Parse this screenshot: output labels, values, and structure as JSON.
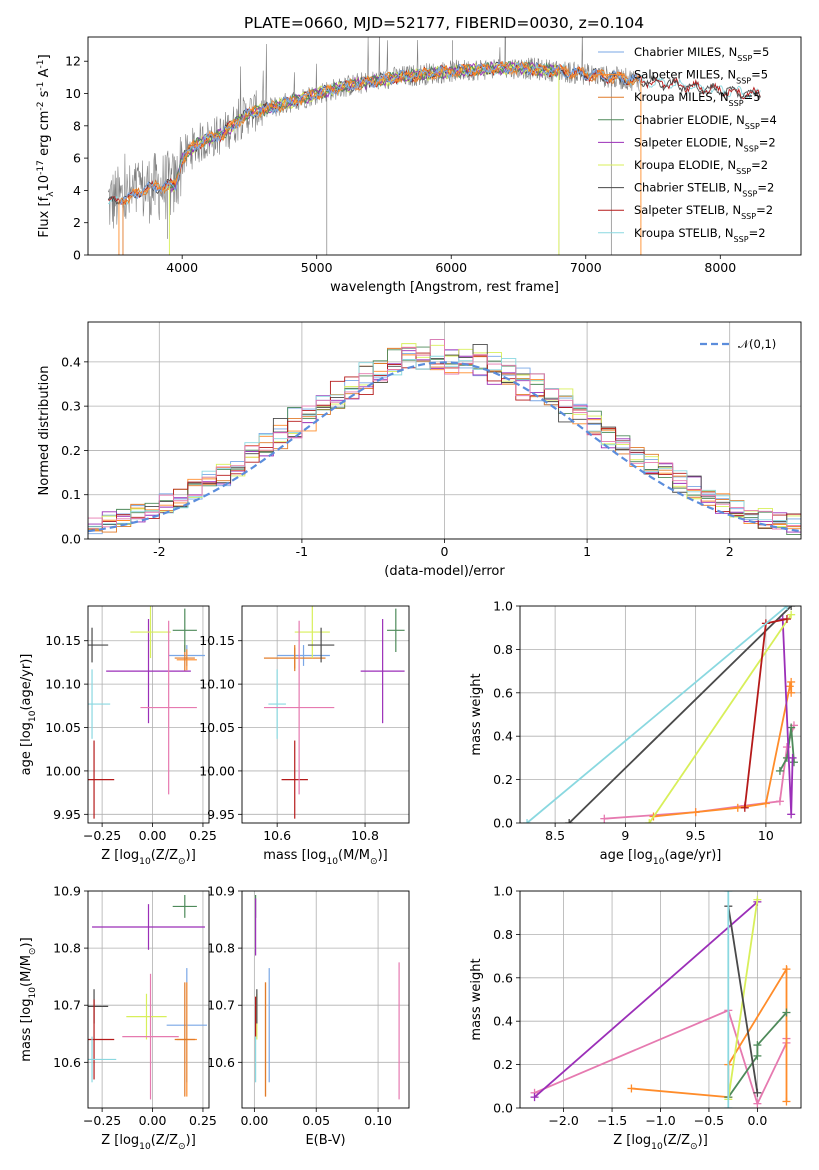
{
  "page_title": "PLATE=0660, MJD=52177, FIBERID=0030, z=0.104",
  "colors": {
    "Chabrier MILES": "#7aa7e6",
    "Salpeter MILES": "#ff8c2a",
    "Kroupa MILES": "#e07b2a",
    "Chabrier ELODIE": "#4e8a5a",
    "Salpeter ELODIE": "#9b2fb8",
    "Kroupa ELODIE": "#d8ef5a",
    "Chabrier STELIB": "#4a4a4a",
    "Salpeter STELIB": "#b51a1a",
    "Kroupa STELIB": "#8ad8e0",
    "pink": "#e67ab0",
    "data": "#808080",
    "gaussian": "#5b8ddc"
  },
  "legend_entries": [
    "Chabrier MILES, N$_{SSP}$=5",
    "Salpeter MILES, N$_{SSP}$=5",
    "Kroupa MILES, N$_{SSP}$=5",
    "Chabrier ELODIE, N$_{SSP}$=4",
    "Salpeter ELODIE, N$_{SSP}$=2",
    "Kroupa ELODIE, N$_{SSP}$=2",
    "Chabrier STELIB, N$_{SSP}$=2",
    "Salpeter STELIB, N$_{SSP}$=2",
    "Kroupa STELIB, N$_{SSP}$=2"
  ],
  "chart_data": [
    {
      "type": "line",
      "panel": "spectrum",
      "title": "PLATE=0660, MJD=52177, FIBERID=0030, z=0.104",
      "xlabel": "wavelength [Angstrom, rest frame]",
      "ylabel": "Flux [f$_\\lambda$10$^{-17}$ erg cm$^{-2}$ s$^{-1}$ A$^{-1}$]",
      "xlim": [
        3300,
        8600
      ],
      "ylim": [
        0,
        13.5
      ],
      "xticks": [
        4000,
        5000,
        6000,
        7000,
        8000
      ],
      "yticks": [
        0,
        2,
        4,
        6,
        8,
        10,
        12
      ],
      "continuum": {
        "x": [
          3450,
          3600,
          3700,
          3800,
          3900,
          3950,
          4000,
          4100,
          4200,
          4300,
          4400,
          4500,
          4700,
          5000,
          5300,
          5600,
          5900,
          6200,
          6500,
          6800,
          7000,
          7200,
          7400,
          7600,
          7800,
          8000,
          8200
        ],
        "y": [
          3.3,
          3.5,
          4.0,
          4.2,
          4.3,
          4.3,
          6.0,
          6.8,
          7.2,
          7.5,
          8.2,
          8.8,
          9.2,
          10.0,
          10.6,
          11.0,
          11.3,
          11.5,
          11.6,
          11.4,
          11.2,
          11.0,
          10.8,
          10.6,
          10.4,
          10.2,
          10.0
        ]
      },
      "series_names": [
        "Chabrier MILES",
        "Salpeter MILES",
        "Kroupa MILES",
        "Chabrier ELODIE",
        "Salpeter ELODIE",
        "Kroupa ELODIE",
        "Chabrier STELIB",
        "Salpeter STELIB",
        "Kroupa STELIB"
      ]
    },
    {
      "type": "histogram",
      "panel": "residuals",
      "xlabel": "(data-model)/error",
      "ylabel": "Normed distribution",
      "xlim": [
        -2.5,
        2.5
      ],
      "ylim": [
        0,
        0.49
      ],
      "xticks": [
        -2,
        -1,
        0,
        1,
        2
      ],
      "yticks": [
        0.0,
        0.1,
        0.2,
        0.3,
        0.4
      ],
      "gaussian_label": "$\\mathcal{N}(0,1)$",
      "bin_width": 0.1
    },
    {
      "type": "scatter",
      "panel": "age-vs-Z",
      "xlabel": "Z [log$_{10}$(Z/Z$_\\odot$)]",
      "ylabel": "age  [log$_{10}$(age/yr)]",
      "xlim": [
        -0.32,
        0.28
      ],
      "ylim": [
        9.94,
        10.19
      ],
      "xticks": [
        -0.25,
        0.0,
        0.25
      ],
      "xtick_labels": [
        "−0.25",
        "0.00",
        "0.25"
      ],
      "yticks": [
        9.95,
        10.0,
        10.05,
        10.1,
        10.15
      ],
      "points": [
        {
          "name": "Chabrier MILES",
          "x": 0.17,
          "y": 10.133,
          "xerr": 0.09,
          "yerr": 0.012
        },
        {
          "name": "Salpeter MILES",
          "x": 0.17,
          "y": 10.128,
          "xerr": 0.05,
          "yerr": 0.012
        },
        {
          "name": "Kroupa MILES",
          "x": 0.16,
          "y": 10.13,
          "xerr": 0.05,
          "yerr": 0.015
        },
        {
          "name": "Chabrier ELODIE",
          "x": 0.16,
          "y": 10.162,
          "xerr": 0.06,
          "yerr": 0.025
        },
        {
          "name": "Salpeter ELODIE",
          "x": -0.02,
          "y": 10.115,
          "xerr": 0.21,
          "yerr": 0.06
        },
        {
          "name": "Kroupa ELODIE",
          "x": -0.01,
          "y": 10.16,
          "xerr": 0.1,
          "yerr": 0.03
        },
        {
          "name": "Chabrier STELIB",
          "x": -0.3,
          "y": 10.145,
          "xerr": 0.08,
          "yerr": 0.02
        },
        {
          "name": "Salpeter STELIB",
          "x": -0.29,
          "y": 9.99,
          "xerr": 0.1,
          "yerr": 0.045
        },
        {
          "name": "Kroupa STELIB",
          "x": -0.3,
          "y": 10.077,
          "xerr": 0.09,
          "yerr": 0.04
        },
        {
          "name": "pink",
          "x": 0.08,
          "y": 10.073,
          "xerr": 0.14,
          "yerr": 0.1
        }
      ]
    },
    {
      "type": "scatter",
      "panel": "age-vs-mass",
      "xlabel": "mass [log$_{10}$(M/M$_\\odot$)]",
      "xlim": [
        10.52,
        10.9
      ],
      "ylim": [
        9.94,
        10.19
      ],
      "xticks": [
        10.6,
        10.8
      ],
      "yticks": [
        9.95,
        10.0,
        10.05,
        10.1,
        10.15
      ],
      "points": [
        {
          "name": "Chabrier MILES",
          "x": 10.66,
          "y": 10.133,
          "xerr": 0.06,
          "yerr": 0.012
        },
        {
          "name": "Salpeter MILES",
          "x": 10.64,
          "y": 10.13,
          "xerr": 0.07,
          "yerr": 0.012
        },
        {
          "name": "Kroupa MILES",
          "x": 10.64,
          "y": 10.13,
          "xerr": 0.07,
          "yerr": 0.015
        },
        {
          "name": "Chabrier ELODIE",
          "x": 10.87,
          "y": 10.162,
          "xerr": 0.02,
          "yerr": 0.025
        },
        {
          "name": "Salpeter ELODIE",
          "x": 10.84,
          "y": 10.115,
          "xerr": 0.05,
          "yerr": 0.06
        },
        {
          "name": "Kroupa ELODIE",
          "x": 10.68,
          "y": 10.16,
          "xerr": 0.04,
          "yerr": 0.03
        },
        {
          "name": "Chabrier STELIB",
          "x": 10.7,
          "y": 10.145,
          "xerr": 0.03,
          "yerr": 0.02
        },
        {
          "name": "Salpeter STELIB",
          "x": 10.64,
          "y": 9.99,
          "xerr": 0.03,
          "yerr": 0.045
        },
        {
          "name": "Kroupa STELIB",
          "x": 10.6,
          "y": 10.077,
          "xerr": 0.02,
          "yerr": 0.04
        },
        {
          "name": "pink",
          "x": 10.65,
          "y": 10.073,
          "xerr": 0.08,
          "yerr": 0.1
        }
      ]
    },
    {
      "type": "line",
      "panel": "weight-vs-age",
      "xlabel": "age  [log$_{10}$(age/yr)]",
      "ylabel": "mass weight",
      "xlim": [
        8.25,
        10.25
      ],
      "ylim": [
        0,
        1.0
      ],
      "xticks": [
        8.5,
        9.0,
        9.5,
        10.0
      ],
      "yticks": [
        0.0,
        0.2,
        0.4,
        0.6,
        0.8,
        1.0
      ],
      "series": [
        {
          "name": "pink",
          "x": [
            8.85,
            9.5,
            9.85,
            10.1,
            10.15,
            10.2
          ],
          "y": [
            0.02,
            0.05,
            0.08,
            0.1,
            0.35,
            0.45
          ]
        },
        {
          "name": "Salpeter MILES",
          "x": [
            9.2,
            9.5,
            9.8,
            10.0,
            10.17,
            10.18,
            10.18
          ],
          "y": [
            0.03,
            0.05,
            0.07,
            0.09,
            0.63,
            0.65,
            0.6
          ]
        },
        {
          "name": "Chabrier ELODIE",
          "x": [
            10.1,
            10.15,
            10.18,
            10.2
          ],
          "y": [
            0.24,
            0.3,
            0.44,
            0.28
          ]
        },
        {
          "name": "Salpeter ELODIE",
          "x": [
            10.12,
            10.18,
            10.19
          ],
          "y": [
            0.94,
            0.04,
            0.3
          ]
        },
        {
          "name": "Kroupa ELODIE",
          "x": [
            9.17,
            10.18
          ],
          "y": [
            0.0,
            0.96
          ]
        },
        {
          "name": "Chabrier STELIB",
          "x": [
            8.6,
            10.18
          ],
          "y": [
            0.0,
            1.0
          ]
        },
        {
          "name": "Salpeter STELIB",
          "x": [
            9.85,
            10.0,
            10.15
          ],
          "y": [
            0.07,
            0.92,
            0.94
          ]
        },
        {
          "name": "Kroupa STELIB",
          "x": [
            8.3,
            10.15
          ],
          "y": [
            0.0,
            1.0
          ]
        }
      ]
    },
    {
      "type": "scatter",
      "panel": "mass-vs-Z",
      "xlabel": "Z [log$_{10}$(Z/Z$_\\odot$)]",
      "ylabel": "mass [log$_{10}$(M/M$_\\odot$)]",
      "xlim": [
        -0.32,
        0.28
      ],
      "ylim": [
        10.52,
        10.9
      ],
      "xticks": [
        -0.25,
        0.0,
        0.25
      ],
      "xtick_labels": [
        "−0.25",
        "0.00",
        "0.25"
      ],
      "yticks": [
        10.6,
        10.7,
        10.8,
        10.9
      ],
      "points": [
        {
          "name": "Chabrier MILES",
          "x": 0.17,
          "y": 10.665,
          "xerr": 0.1,
          "yerr": 0.1
        },
        {
          "name": "Salpeter MILES",
          "x": 0.17,
          "y": 10.64,
          "xerr": 0.05,
          "yerr": 0.1
        },
        {
          "name": "Kroupa MILES",
          "x": 0.16,
          "y": 10.64,
          "xerr": 0.05,
          "yerr": 0.1
        },
        {
          "name": "Chabrier ELODIE",
          "x": 0.16,
          "y": 10.873,
          "xerr": 0.06,
          "yerr": 0.02
        },
        {
          "name": "Salpeter ELODIE",
          "x": -0.02,
          "y": 10.837,
          "xerr": 0.28,
          "yerr": 0.04
        },
        {
          "name": "Kroupa ELODIE",
          "x": -0.03,
          "y": 10.68,
          "xerr": 0.1,
          "yerr": 0.04
        },
        {
          "name": "Chabrier STELIB",
          "x": -0.29,
          "y": 10.698,
          "xerr": 0.07,
          "yerr": 0.03
        },
        {
          "name": "Salpeter STELIB",
          "x": -0.29,
          "y": 10.64,
          "xerr": 0.1,
          "yerr": 0.07
        },
        {
          "name": "Kroupa STELIB",
          "x": -0.3,
          "y": 10.605,
          "xerr": 0.12,
          "yerr": 0.04
        },
        {
          "name": "pink",
          "x": -0.01,
          "y": 10.645,
          "xerr": 0.14,
          "yerr": 0.11
        }
      ]
    },
    {
      "type": "scatter",
      "panel": "mass-vs-EBV",
      "xlabel": "E(B-V)",
      "xlim": [
        -0.01,
        0.125
      ],
      "ylim": [
        10.52,
        10.9
      ],
      "xticks": [
        0.0,
        0.05,
        0.1
      ],
      "xtick_labels": [
        "0.00",
        "0.05",
        "0.10"
      ],
      "yticks": [
        10.6,
        10.7,
        10.8,
        10.9
      ],
      "points": [
        {
          "name": "Chabrier MILES",
          "x": 0.012,
          "y": 10.665,
          "xerr": 0,
          "yerr": 0.1
        },
        {
          "name": "Salpeter MILES",
          "x": 0.009,
          "y": 10.64,
          "xerr": 0,
          "yerr": 0.1
        },
        {
          "name": "Kroupa MILES",
          "x": 0.009,
          "y": 10.64,
          "xerr": 0,
          "yerr": 0.1
        },
        {
          "name": "Chabrier ELODIE",
          "x": 0.001,
          "y": 10.873,
          "xerr": 0,
          "yerr": 0.02
        },
        {
          "name": "Salpeter ELODIE",
          "x": 0.001,
          "y": 10.837,
          "xerr": 0,
          "yerr": 0.05
        },
        {
          "name": "Kroupa ELODIE",
          "x": 0.002,
          "y": 10.68,
          "xerr": 0,
          "yerr": 0.04
        },
        {
          "name": "Chabrier STELIB",
          "x": 0.002,
          "y": 10.698,
          "xerr": 0,
          "yerr": 0.03
        },
        {
          "name": "Salpeter STELIB",
          "x": 0.001,
          "y": 10.68,
          "xerr": 0,
          "yerr": 0.035
        },
        {
          "name": "Kroupa STELIB",
          "x": 0.001,
          "y": 10.605,
          "xerr": 0,
          "yerr": 0.04
        },
        {
          "name": "pink",
          "x": 0.117,
          "y": 10.655,
          "xerr": 0,
          "yerr": 0.12
        }
      ]
    },
    {
      "type": "line",
      "panel": "weight-vs-Z",
      "xlabel": "Z [log$_{10}$(Z/Z$_\\odot$)]",
      "ylabel": "mass weight",
      "xlim": [
        -2.45,
        0.45
      ],
      "ylim": [
        0,
        1.0
      ],
      "xticks": [
        -2.0,
        -1.5,
        -1.0,
        -0.5,
        0.0
      ],
      "xtick_labels": [
        "−2.0",
        "−1.5",
        "−1.0",
        "−0.5",
        "0.0"
      ],
      "yticks": [
        0.0,
        0.2,
        0.4,
        0.6,
        0.8,
        1.0
      ],
      "series": [
        {
          "name": "pink",
          "x": [
            -2.3,
            -0.3,
            0.0,
            0.3,
            0.3
          ],
          "y": [
            0.07,
            0.45,
            0.02,
            0.3,
            0.32
          ]
        },
        {
          "name": "Salpeter MILES",
          "x": [
            -1.3,
            -0.3,
            -0.3,
            0.3,
            0.3
          ],
          "y": [
            0.09,
            0.05,
            0.2,
            0.64,
            0.03
          ]
        },
        {
          "name": "Chabrier ELODIE",
          "x": [
            -0.3,
            0.0,
            0.0,
            0.3
          ],
          "y": [
            0.05,
            0.24,
            0.29,
            0.44
          ]
        },
        {
          "name": "Salpeter ELODIE",
          "x": [
            -2.3,
            0.0
          ],
          "y": [
            0.05,
            0.95
          ]
        },
        {
          "name": "Kroupa ELODIE",
          "x": [
            -0.3,
            0.0
          ],
          "y": [
            0.04,
            0.96
          ]
        },
        {
          "name": "Chabrier STELIB",
          "x": [
            -0.3,
            0.0
          ],
          "y": [
            0.93,
            0.07
          ]
        },
        {
          "name": "Kroupa STELIB",
          "x": [
            -0.3,
            -0.3
          ],
          "y": [
            0.0,
            1.0
          ]
        }
      ]
    }
  ]
}
